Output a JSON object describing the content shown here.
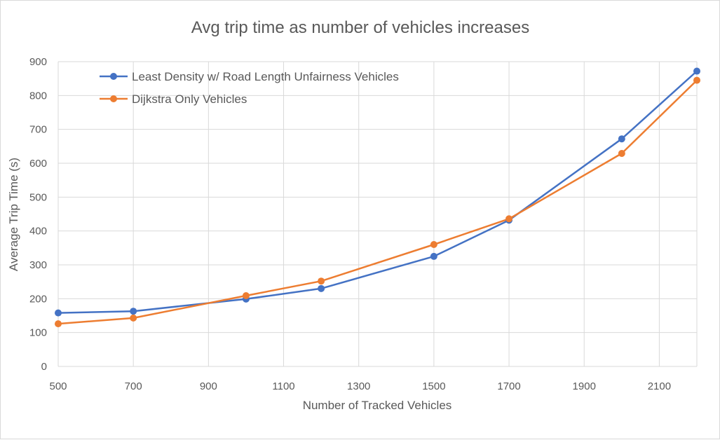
{
  "chart_data": {
    "type": "line",
    "title": "Avg trip time as number of vehicles increases",
    "xlabel": "Number of Tracked Vehicles",
    "ylabel": "Average Trip Time (s)",
    "xlim": [
      500,
      2200
    ],
    "ylim": [
      0,
      900
    ],
    "x_ticks": [
      500,
      700,
      900,
      1100,
      1300,
      1500,
      1700,
      1900,
      2100
    ],
    "y_ticks": [
      0,
      100,
      200,
      300,
      400,
      500,
      600,
      700,
      800,
      900
    ],
    "grid": true,
    "legend_position": "top-left",
    "series": [
      {
        "name": "Least Density w/ Road Length Unfairness Vehicles",
        "color": "#4472c4",
        "x": [
          500,
          700,
          1000,
          1200,
          1500,
          1700,
          2000,
          2200
        ],
        "y": [
          158,
          163,
          199,
          230,
          325,
          432,
          672,
          872
        ]
      },
      {
        "name": "Dijkstra Only Vehicles",
        "color": "#ed7d31",
        "x": [
          500,
          700,
          1000,
          1200,
          1500,
          1700,
          2000,
          2200
        ],
        "y": [
          126,
          143,
          209,
          252,
          360,
          436,
          629,
          845
        ]
      }
    ]
  }
}
